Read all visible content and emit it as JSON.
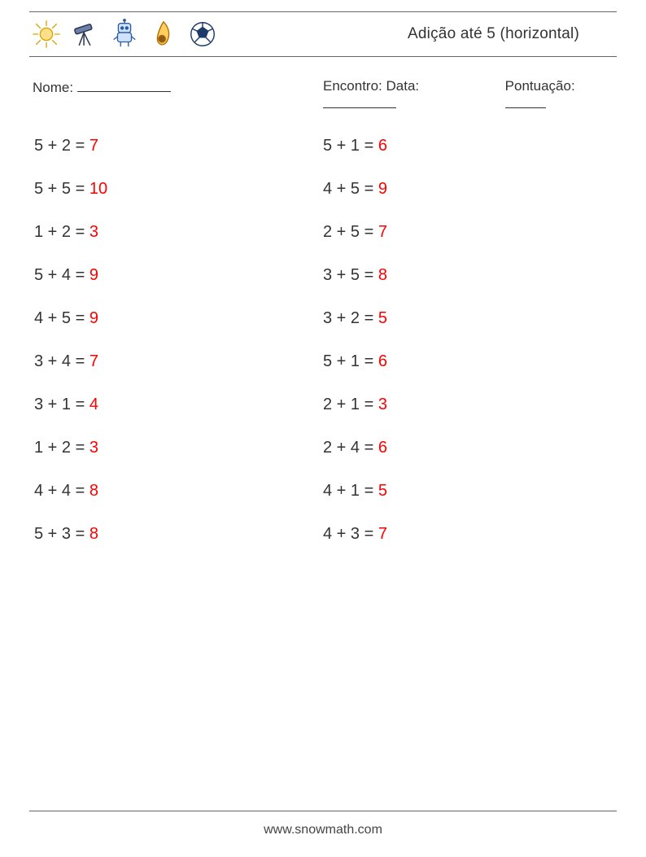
{
  "colors": {
    "text": "#333333",
    "answer": "#ff0000",
    "rule": "#666666",
    "background": "#ffffff"
  },
  "typography": {
    "body_fontsize": 20,
    "meta_fontsize": 17,
    "title_fontsize": 19,
    "footer_fontsize": 16,
    "font_family": "Segoe UI / Helvetica Neue / Arial"
  },
  "header": {
    "title": "Adição até 5 (horizontal)",
    "icons": [
      "sun-icon",
      "telescope-icon",
      "robot-icon",
      "meteor-icon",
      "soccer-ball-icon"
    ]
  },
  "meta": {
    "name_label": "Nome:",
    "encounter_label": "Encontro: Data:",
    "score_label": "Pontuação:"
  },
  "problems": {
    "columns": 2,
    "rows": 10,
    "left": [
      {
        "a": 5,
        "b": 2,
        "ans": 7
      },
      {
        "a": 5,
        "b": 5,
        "ans": 10
      },
      {
        "a": 1,
        "b": 2,
        "ans": 3
      },
      {
        "a": 5,
        "b": 4,
        "ans": 9
      },
      {
        "a": 4,
        "b": 5,
        "ans": 9
      },
      {
        "a": 3,
        "b": 4,
        "ans": 7
      },
      {
        "a": 3,
        "b": 1,
        "ans": 4
      },
      {
        "a": 1,
        "b": 2,
        "ans": 3
      },
      {
        "a": 4,
        "b": 4,
        "ans": 8
      },
      {
        "a": 5,
        "b": 3,
        "ans": 8
      }
    ],
    "right": [
      {
        "a": 5,
        "b": 1,
        "ans": 6
      },
      {
        "a": 4,
        "b": 5,
        "ans": 9
      },
      {
        "a": 2,
        "b": 5,
        "ans": 7
      },
      {
        "a": 3,
        "b": 5,
        "ans": 8
      },
      {
        "a": 3,
        "b": 2,
        "ans": 5
      },
      {
        "a": 5,
        "b": 1,
        "ans": 6
      },
      {
        "a": 2,
        "b": 1,
        "ans": 3
      },
      {
        "a": 2,
        "b": 4,
        "ans": 6
      },
      {
        "a": 4,
        "b": 1,
        "ans": 5
      },
      {
        "a": 4,
        "b": 3,
        "ans": 7
      }
    ]
  },
  "footer": {
    "text": "www.snowmath.com"
  }
}
